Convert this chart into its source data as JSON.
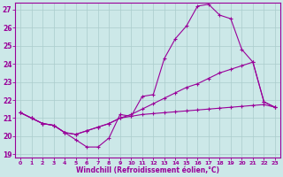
{
  "xlabel": "Windchill (Refroidissement éolien,°C)",
  "bg_color": "#cce8e8",
  "line_color": "#990099",
  "grid_color": "#aacccc",
  "xlim": [
    -0.5,
    23.5
  ],
  "ylim": [
    18.8,
    27.4
  ],
  "xticks": [
    0,
    1,
    2,
    3,
    4,
    5,
    6,
    7,
    8,
    9,
    10,
    11,
    12,
    13,
    14,
    15,
    16,
    17,
    18,
    19,
    20,
    21,
    22,
    23
  ],
  "yticks": [
    19,
    20,
    21,
    22,
    23,
    24,
    25,
    26,
    27
  ],
  "hours": [
    0,
    1,
    2,
    3,
    4,
    5,
    6,
    7,
    8,
    9,
    10,
    11,
    12,
    13,
    14,
    15,
    16,
    17,
    18,
    19,
    20,
    21,
    22,
    23
  ],
  "temp": [
    21.3,
    21.0,
    20.7,
    20.6,
    20.2,
    19.8,
    19.4,
    19.4,
    19.9,
    21.2,
    21.1,
    22.2,
    22.3,
    24.3,
    25.4,
    26.1,
    27.2,
    27.3,
    26.7,
    26.5,
    24.8,
    24.1,
    21.9,
    21.6
  ],
  "line2": [
    21.3,
    21.0,
    20.7,
    20.6,
    20.2,
    20.1,
    20.3,
    20.5,
    20.7,
    21.0,
    21.2,
    21.5,
    21.8,
    22.1,
    22.4,
    22.7,
    22.9,
    23.2,
    23.5,
    23.7,
    23.9,
    24.1,
    21.9,
    21.6
  ],
  "line3": [
    21.3,
    21.0,
    20.7,
    20.6,
    20.2,
    20.1,
    20.3,
    20.5,
    20.7,
    21.0,
    21.1,
    21.2,
    21.25,
    21.3,
    21.35,
    21.4,
    21.45,
    21.5,
    21.55,
    21.6,
    21.65,
    21.7,
    21.75,
    21.6
  ]
}
